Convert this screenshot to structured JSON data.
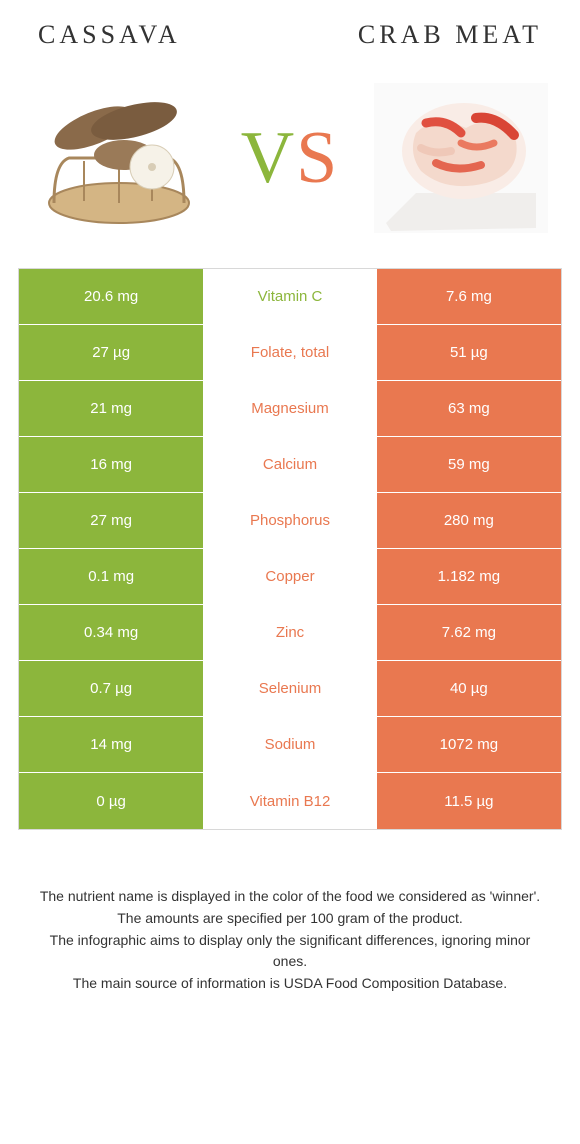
{
  "colors": {
    "left": "#8cb63c",
    "right": "#e97850",
    "border": "#d8d8d8",
    "bg": "#ffffff",
    "text": "#333333"
  },
  "header": {
    "left_title": "Cassava",
    "right_title": "Crab meat",
    "vs_v": "V",
    "vs_s": "S"
  },
  "rows": [
    {
      "left": "20.6 mg",
      "label": "Vitamin C",
      "right": "7.6 mg",
      "winner": "left"
    },
    {
      "left": "27 µg",
      "label": "Folate, total",
      "right": "51 µg",
      "winner": "right"
    },
    {
      "left": "21 mg",
      "label": "Magnesium",
      "right": "63 mg",
      "winner": "right"
    },
    {
      "left": "16 mg",
      "label": "Calcium",
      "right": "59 mg",
      "winner": "right"
    },
    {
      "left": "27 mg",
      "label": "Phosphorus",
      "right": "280 mg",
      "winner": "right"
    },
    {
      "left": "0.1 mg",
      "label": "Copper",
      "right": "1.182 mg",
      "winner": "right"
    },
    {
      "left": "0.34 mg",
      "label": "Zinc",
      "right": "7.62 mg",
      "winner": "right"
    },
    {
      "left": "0.7 µg",
      "label": "Selenium",
      "right": "40 µg",
      "winner": "right"
    },
    {
      "left": "14 mg",
      "label": "Sodium",
      "right": "1072 mg",
      "winner": "right"
    },
    {
      "left": "0 µg",
      "label": "Vitamin B12",
      "right": "11.5 µg",
      "winner": "right"
    }
  ],
  "footer": {
    "line1": "The nutrient name is displayed in the color of the food we considered as 'winner'.",
    "line2": "The amounts are specified per 100 gram of the product.",
    "line3": "The infographic aims to display only the significant differences, ignoring minor ones.",
    "line4": "The main source of information is USDA Food Composition Database."
  }
}
